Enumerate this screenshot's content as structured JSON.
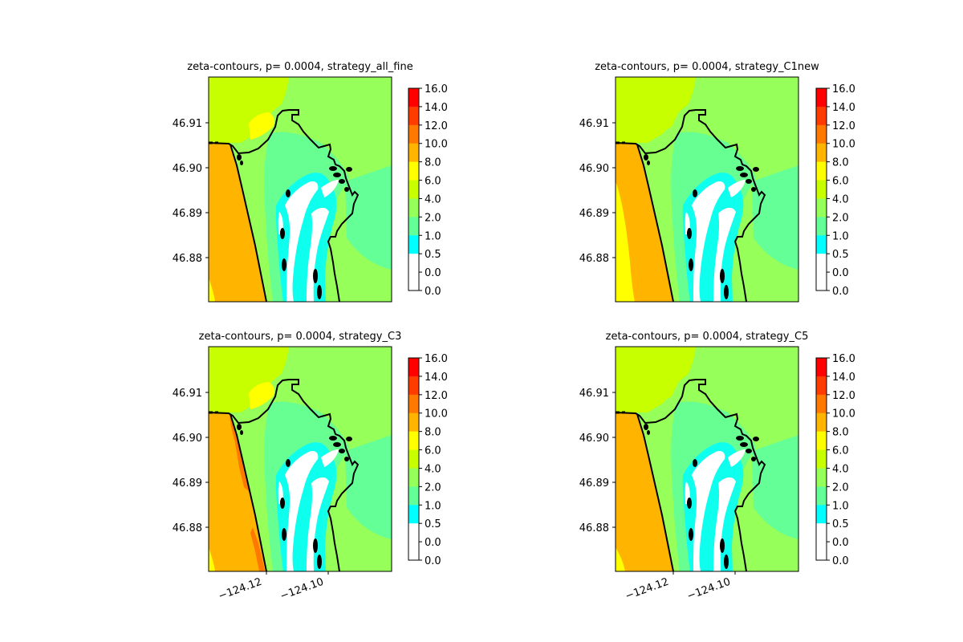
{
  "chart_data": [
    {
      "type": "contour-map",
      "title": "zeta-contours, p= 0.0004, strategy_all_fine",
      "variant": "all_fine",
      "yticks": [
        "46.91",
        "46.90",
        "46.89",
        "46.88"
      ],
      "xticks": [],
      "colorbar": {
        "levels": [
          "16.0",
          "14.0",
          "12.0",
          "10.0",
          "8.0",
          "6.0",
          "4.0",
          "2.0",
          "1.0",
          "0.5",
          "0.0",
          "0.0"
        ],
        "colors": [
          "#ff0000",
          "#ff3c00",
          "#ff7800",
          "#ffb400",
          "#ffff00",
          "#c8ff00",
          "#96ff5a",
          "#64ff96",
          "#00ffff",
          "#ffffff"
        ]
      }
    },
    {
      "type": "contour-map",
      "title": "zeta-contours, p= 0.0004, strategy_C1new",
      "variant": "C1new",
      "yticks": [
        "46.91",
        "46.90",
        "46.89",
        "46.88"
      ],
      "xticks": [],
      "colorbar": {
        "levels": [
          "16.0",
          "14.0",
          "12.0",
          "10.0",
          "8.0",
          "6.0",
          "4.0",
          "2.0",
          "1.0",
          "0.5",
          "0.0",
          "0.0"
        ],
        "colors": [
          "#ff0000",
          "#ff3c00",
          "#ff7800",
          "#ffb400",
          "#ffff00",
          "#c8ff00",
          "#96ff5a",
          "#64ff96",
          "#00ffff",
          "#ffffff"
        ]
      }
    },
    {
      "type": "contour-map",
      "title": "zeta-contours, p= 0.0004, strategy_C3",
      "variant": "C3",
      "yticks": [
        "46.91",
        "46.90",
        "46.89",
        "46.88"
      ],
      "xticks": [
        "−124.12",
        "−124.10"
      ],
      "colorbar": {
        "levels": [
          "16.0",
          "14.0",
          "12.0",
          "10.0",
          "8.0",
          "6.0",
          "4.0",
          "2.0",
          "1.0",
          "0.5",
          "0.0",
          "0.0"
        ],
        "colors": [
          "#ff0000",
          "#ff3c00",
          "#ff7800",
          "#ffb400",
          "#ffff00",
          "#c8ff00",
          "#96ff5a",
          "#64ff96",
          "#00ffff",
          "#ffffff"
        ]
      }
    },
    {
      "type": "contour-map",
      "title": "zeta-contours, p= 0.0004, strategy_C5",
      "variant": "C5",
      "yticks": [
        "46.91",
        "46.90",
        "46.89",
        "46.88"
      ],
      "xticks": [
        "−124.12",
        "−124.10"
      ],
      "colorbar": {
        "levels": [
          "16.0",
          "14.0",
          "12.0",
          "10.0",
          "8.0",
          "6.0",
          "4.0",
          "2.0",
          "1.0",
          "0.5",
          "0.0",
          "0.0"
        ],
        "colors": [
          "#ff0000",
          "#ff3c00",
          "#ff7800",
          "#ffb400",
          "#ffff00",
          "#c8ff00",
          "#96ff5a",
          "#64ff96",
          "#00ffff",
          "#ffffff"
        ]
      }
    }
  ]
}
